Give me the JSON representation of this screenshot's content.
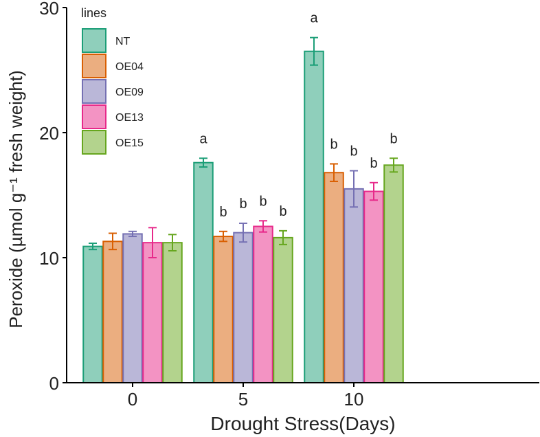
{
  "chart_data": {
    "type": "bar",
    "title": "",
    "xlabel": "Drought Stress(Days)",
    "ylabel": "Peroxide (µmol g⁻¹ fresh weight)",
    "ylim": [
      0,
      30
    ],
    "yticks": [
      "0",
      "10",
      "20",
      "30"
    ],
    "categories": [
      "0",
      "5",
      "10"
    ],
    "grid": false,
    "legend": {
      "title": "lines",
      "position": "top-left"
    },
    "series": [
      {
        "name": "NT",
        "fill": "#8fcfbb",
        "stroke": "#1b9e77",
        "values": [
          10.9,
          17.6,
          26.5
        ],
        "errors": [
          0.25,
          0.35,
          1.1
        ],
        "letters": [
          "",
          "a",
          "a"
        ]
      },
      {
        "name": "OE04",
        "fill": "#ebae80",
        "stroke": "#d95f02",
        "values": [
          11.3,
          11.7,
          16.8
        ],
        "errors": [
          0.65,
          0.4,
          0.7
        ],
        "letters": [
          "",
          "b",
          "b"
        ]
      },
      {
        "name": "OE09",
        "fill": "#bab7d8",
        "stroke": "#7570b3",
        "values": [
          11.9,
          12.0,
          15.5
        ],
        "errors": [
          0.2,
          0.75,
          1.45
        ],
        "letters": [
          "",
          "b",
          "b"
        ]
      },
      {
        "name": "OE13",
        "fill": "#f393c3",
        "stroke": "#e7298a",
        "values": [
          11.2,
          12.5,
          15.3
        ],
        "errors": [
          1.2,
          0.45,
          0.7
        ],
        "letters": [
          "",
          "b",
          "b"
        ]
      },
      {
        "name": "OE15",
        "fill": "#b3d38d",
        "stroke": "#66a61e",
        "values": [
          11.2,
          11.6,
          17.4
        ],
        "errors": [
          0.65,
          0.55,
          0.55
        ],
        "letters": [
          "",
          "b",
          "b"
        ]
      }
    ]
  }
}
